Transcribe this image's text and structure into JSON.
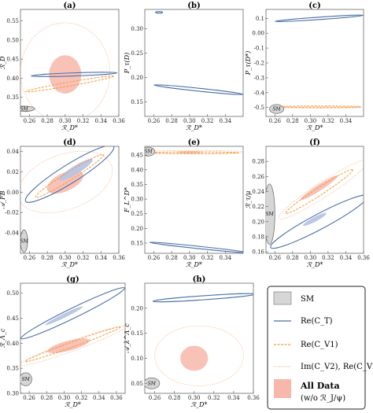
{
  "chart_data": [
    {
      "type": "area",
      "panel_label": "(a)",
      "xlabel": "ℛ_D*",
      "ylabel": "ℛ_D",
      "xlim": [
        0.25,
        0.36
      ],
      "ylim": [
        0.3,
        0.58
      ],
      "x_ticks": [
        0.26,
        0.28,
        0.3,
        0.32,
        0.34,
        0.36
      ],
      "y_ticks": [
        0.35,
        0.4,
        0.45,
        0.5,
        0.55
      ],
      "sm_label": "SM",
      "regions": [
        {
          "kind": "sm",
          "cx": 0.254,
          "cy": 0.32,
          "rx": 0.012,
          "ry": 0.007,
          "angle": 0
        },
        {
          "kind": "all_data",
          "cx": 0.3,
          "cy": 0.41,
          "rx": 0.018,
          "ry": 0.05,
          "angle": 0
        },
        {
          "kind": "im_cv2",
          "cx": 0.3,
          "cy": 0.415,
          "rx": 0.05,
          "ry": 0.13,
          "angle": 0
        },
        {
          "kind": "re_ct",
          "cx": 0.31,
          "cy": 0.41,
          "rx": 0.048,
          "ry": 0.004,
          "angle": 2
        },
        {
          "kind": "re_cv1",
          "cx": 0.305,
          "cy": 0.385,
          "rx": 0.05,
          "ry": 0.005,
          "angle": 10
        }
      ]
    },
    {
      "type": "area",
      "panel_label": "(b)",
      "xlabel": "ℛ_D*",
      "ylabel": "P_τ(D)",
      "xlim": [
        0.25,
        0.36
      ],
      "ylim": [
        0.12,
        0.34
      ],
      "x_ticks": [
        0.26,
        0.28,
        0.3,
        0.32,
        0.34
      ],
      "y_ticks": [
        0.15,
        0.2,
        0.25,
        0.3
      ],
      "regions": [
        {
          "kind": "re_ct",
          "cx": 0.31,
          "cy": 0.175,
          "rx": 0.05,
          "ry": 0.003,
          "angle": -6
        },
        {
          "kind": "re_ct",
          "cx": 0.266,
          "cy": 0.334,
          "rx": 0.004,
          "ry": 0.001,
          "angle": 0
        }
      ]
    },
    {
      "type": "area",
      "panel_label": "(c)",
      "xlabel": "ℛ_D*",
      "ylabel": "P_τ(D*)",
      "xlim": [
        0.25,
        0.36
      ],
      "ylim": [
        -0.56,
        0.16
      ],
      "x_ticks": [
        0.26,
        0.28,
        0.3,
        0.32,
        0.34
      ],
      "y_ticks": [
        -0.5,
        -0.4,
        -0.3,
        -0.2,
        -0.1,
        0.0,
        0.1
      ],
      "sm_label": "SM",
      "regions": [
        {
          "kind": "sm",
          "cx": 0.262,
          "cy": -0.51,
          "rx": 0.008,
          "ry": 0.03,
          "angle": 0
        },
        {
          "kind": "re_ct",
          "cx": 0.31,
          "cy": 0.1,
          "rx": 0.05,
          "ry": 0.008,
          "angle": 4
        },
        {
          "kind": "re_cv1",
          "cx": 0.312,
          "cy": -0.495,
          "rx": 0.045,
          "ry": 0.003,
          "angle": 0
        },
        {
          "kind": "im_cv2",
          "cx": 0.312,
          "cy": -0.5,
          "rx": 0.045,
          "ry": 0.005,
          "angle": 0
        }
      ]
    },
    {
      "type": "area",
      "panel_label": "(d)",
      "xlabel": "ℛ_D*",
      "ylabel": "𝒜_FB",
      "xlim": [
        0.25,
        0.36
      ],
      "ylim": [
        -0.06,
        0.045
      ],
      "x_ticks": [
        0.26,
        0.28,
        0.3,
        0.32,
        0.34,
        0.36
      ],
      "y_ticks": [
        -0.04,
        -0.02,
        0.0,
        0.02,
        0.04
      ],
      "sm_label": "SM",
      "regions": [
        {
          "kind": "sm",
          "cx": 0.254,
          "cy": -0.048,
          "rx": 0.004,
          "ry": 0.011,
          "angle": 0
        },
        {
          "kind": "im_cv2",
          "cx": 0.3,
          "cy": 0.01,
          "rx": 0.055,
          "ry": 0.027,
          "angle": 20
        },
        {
          "kind": "re_ct",
          "cx": 0.305,
          "cy": 0.018,
          "rx": 0.058,
          "ry": 0.009,
          "angle": 32
        },
        {
          "kind": "re_cv1",
          "cx": 0.305,
          "cy": 0.016,
          "rx": 0.045,
          "ry": 0.004,
          "angle": 32
        },
        {
          "kind": "all_data",
          "cx": 0.3,
          "cy": 0.01,
          "rx": 0.022,
          "ry": 0.009,
          "angle": 25
        },
        {
          "kind": "ct_fill",
          "cx": 0.312,
          "cy": 0.022,
          "rx": 0.022,
          "ry": 0.004,
          "angle": 32
        }
      ]
    },
    {
      "type": "area",
      "panel_label": "(e)",
      "xlabel": "ℛ_D*",
      "ylabel": "F_L^D*",
      "xlim": [
        0.25,
        0.36
      ],
      "ylim": [
        0.115,
        0.48
      ],
      "x_ticks": [
        0.26,
        0.28,
        0.3,
        0.32,
        0.34
      ],
      "y_ticks": [
        0.15,
        0.2,
        0.25,
        0.3,
        0.35,
        0.4,
        0.45
      ],
      "sm_label": "SM",
      "regions": [
        {
          "kind": "sm",
          "cx": 0.254,
          "cy": 0.462,
          "rx": 0.007,
          "ry": 0.015,
          "angle": 0
        },
        {
          "kind": "im_cv2",
          "cx": 0.305,
          "cy": 0.46,
          "rx": 0.055,
          "ry": 0.006,
          "angle": 0
        },
        {
          "kind": "re_cv1",
          "cx": 0.305,
          "cy": 0.458,
          "rx": 0.05,
          "ry": 0.003,
          "angle": 0
        },
        {
          "kind": "all_data",
          "cx": 0.3,
          "cy": 0.46,
          "rx": 0.015,
          "ry": 0.004,
          "angle": 0
        },
        {
          "kind": "re_ct",
          "cx": 0.31,
          "cy": 0.135,
          "rx": 0.055,
          "ry": 0.004,
          "angle": -6
        }
      ]
    },
    {
      "type": "area",
      "panel_label": "(f)",
      "xlabel": "ℛ_D*",
      "ylabel": "ℛ_τ/μ",
      "xlim": [
        0.25,
        0.36
      ],
      "ylim": [
        0.158,
        0.3
      ],
      "x_ticks": [
        0.26,
        0.28,
        0.3,
        0.32,
        0.34,
        0.36
      ],
      "y_ticks": [
        0.16,
        0.18,
        0.2,
        0.22,
        0.24,
        0.26,
        0.28
      ],
      "sm_label": "SM",
      "regions": [
        {
          "kind": "sm",
          "cx": 0.254,
          "cy": 0.21,
          "rx": 0.006,
          "ry": 0.04,
          "angle": 0
        },
        {
          "kind": "im_cv2",
          "cx": 0.315,
          "cy": 0.243,
          "rx": 0.06,
          "ry": 0.01,
          "angle": 33
        },
        {
          "kind": "re_cv1",
          "cx": 0.31,
          "cy": 0.24,
          "rx": 0.045,
          "ry": 0.005,
          "angle": 33
        },
        {
          "kind": "all_data",
          "cx": 0.31,
          "cy": 0.245,
          "rx": 0.025,
          "ry": 0.004,
          "angle": 33
        },
        {
          "kind": "re_ct",
          "cx": 0.31,
          "cy": 0.2,
          "rx": 0.062,
          "ry": 0.01,
          "angle": 28
        },
        {
          "kind": "ct_fill",
          "cx": 0.305,
          "cy": 0.203,
          "rx": 0.015,
          "ry": 0.003,
          "angle": 28
        }
      ]
    },
    {
      "type": "area",
      "panel_label": "(g)",
      "xlabel": "ℛ_D*",
      "ylabel": "ℛ_Λ_c",
      "xlim": [
        0.25,
        0.37
      ],
      "ylim": [
        0.3,
        0.52
      ],
      "x_ticks": [
        0.26,
        0.28,
        0.3,
        0.32,
        0.34,
        0.36
      ],
      "y_ticks": [
        0.3,
        0.35,
        0.4,
        0.45,
        0.5
      ],
      "sm_label": "SM",
      "regions": [
        {
          "kind": "sm",
          "cx": 0.256,
          "cy": 0.328,
          "rx": 0.007,
          "ry": 0.013,
          "angle": 0
        },
        {
          "kind": "im_cv2",
          "cx": 0.31,
          "cy": 0.395,
          "rx": 0.065,
          "ry": 0.01,
          "angle": 20
        },
        {
          "kind": "re_cv1",
          "cx": 0.31,
          "cy": 0.398,
          "rx": 0.058,
          "ry": 0.005,
          "angle": 20
        },
        {
          "kind": "all_data",
          "cx": 0.305,
          "cy": 0.395,
          "rx": 0.025,
          "ry": 0.01,
          "angle": 15
        },
        {
          "kind": "re_ct",
          "cx": 0.31,
          "cy": 0.46,
          "rx": 0.066,
          "ry": 0.01,
          "angle": 26
        },
        {
          "kind": "ct_fill",
          "cx": 0.3,
          "cy": 0.455,
          "rx": 0.024,
          "ry": 0.004,
          "angle": 26
        }
      ]
    },
    {
      "type": "area",
      "panel_label": "(h)",
      "xlabel": "ℛ_D*",
      "ylabel": "𝒜_λ^Λ_c",
      "xlim": [
        0.25,
        0.36
      ],
      "ylim": [
        0.03,
        0.25
      ],
      "x_ticks": [
        0.26,
        0.28,
        0.3,
        0.32,
        0.34,
        0.36
      ],
      "y_ticks": [
        0.05,
        0.1,
        0.15,
        0.2
      ],
      "sm_label": "SM",
      "regions": [
        {
          "kind": "sm",
          "cx": 0.257,
          "cy": 0.05,
          "rx": 0.008,
          "ry": 0.011,
          "angle": 0
        },
        {
          "kind": "re_ct",
          "cx": 0.31,
          "cy": 0.221,
          "rx": 0.052,
          "ry": 0.004,
          "angle": 4
        },
        {
          "kind": "im_cv2",
          "cx": 0.305,
          "cy": 0.105,
          "rx": 0.045,
          "ry": 0.06,
          "angle": 0
        },
        {
          "kind": "all_data",
          "cx": 0.3,
          "cy": 0.1,
          "rx": 0.014,
          "ry": 0.025,
          "angle": 0
        }
      ]
    }
  ],
  "legend": {
    "items": [
      {
        "kind": "sm",
        "label": "SM"
      },
      {
        "kind": "re_ct",
        "label": "Re(C_T)"
      },
      {
        "kind": "re_cv1",
        "label": "Re(C_V1)"
      },
      {
        "kind": "im_cv2",
        "label": "Im(C_V2), Re(C_V2)"
      }
    ],
    "all_data_label": "All Data",
    "all_data_sub": "(w/o ℛ_J/ψ)"
  },
  "colors": {
    "sm_fill": "#d6d6d6",
    "sm_stroke": "#707070",
    "re_ct": "#4a6fa5",
    "ct_fill": "#b7c4e2",
    "re_cv1": "#f39a3f",
    "im_cv2": "#f6b48a",
    "all_data": "#f7b7aa"
  }
}
